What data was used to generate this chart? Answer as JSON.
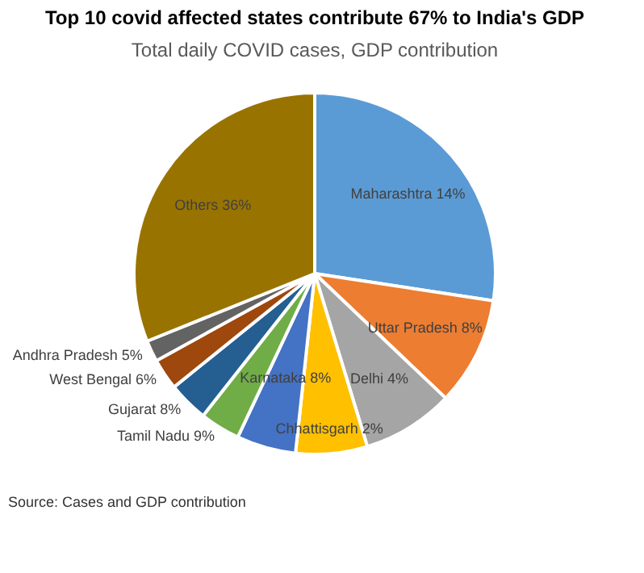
{
  "chart_data": {
    "type": "pie",
    "title": "Top 10 covid affected states contribute 67% to India's GDP",
    "subtitle": "Total daily COVID cases, GDP contribution",
    "categories": [
      "Maharashtra 14%",
      "Uttar Pradesh 8%",
      "Delhi 4%",
      "Chhattisgarh 2%",
      "Karnataka 8%",
      "Tamil Nadu 9%",
      "Gujarat 8%",
      "West Bengal 6%",
      "Andhra Pradesh 5%",
      "Others 36%"
    ],
    "values": [
      27.4,
      9.7,
      8.2,
      6.4,
      5.3,
      3.6,
      3.6,
      2.8,
      1.9,
      31.1
    ],
    "colors": [
      "#5b9bd5",
      "#ed7d31",
      "#a5a5a5",
      "#ffc000",
      "#4472c4",
      "#70ad47",
      "#255e91",
      "#9e480e",
      "#636363",
      "#997300"
    ],
    "legend": false,
    "annotations": [
      "Source: Cases and GDP contribution"
    ]
  }
}
